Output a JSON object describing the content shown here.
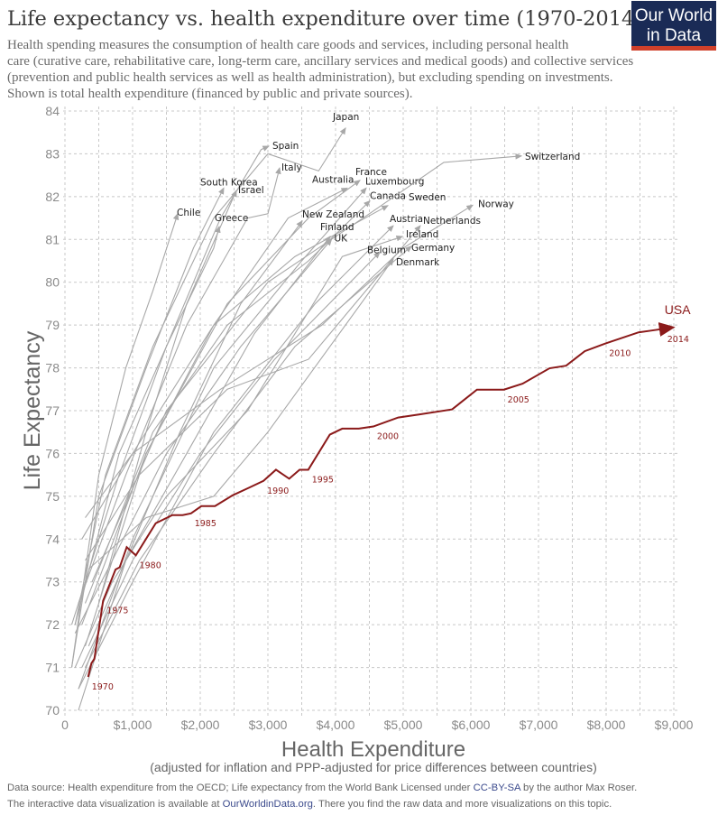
{
  "title": "Life expectancy vs. health expenditure over time (1970-2014)",
  "subtitle_lines": [
    "Health spending measures the consumption of health care goods and services, including personal health",
    "care (curative care, rehabilitative care, long-term care, ancillary services and medical goods) and collective services",
    "(prevention and public health services as well as health administration), but excluding spending on investments.",
    "Shown is total health expenditure (financed by public and private sources)."
  ],
  "logo": {
    "line1": "Our World",
    "line2": "in Data",
    "bg": "#1a2b56",
    "accent": "#d0402a"
  },
  "footer": {
    "line1_a": "Data source: Health expenditure from the OECD; Life expectancy from the World Bank    Licensed under ",
    "line1_link": "CC-BY-SA",
    "line1_b": " by the author Max Roser.",
    "line2_a": "The interactive data visualization is available at ",
    "line2_link": "OurWorldinData.org",
    "line2_b": ". There you find the raw data and more visualizations on this topic."
  },
  "chart_data": {
    "type": "line",
    "title": "Life expectancy vs. health expenditure over time (1970-2014)",
    "xlabel": "Health Expenditure",
    "xlabel_sub": "(adjusted for inflation and PPP-adjusted for price differences between countries)",
    "ylabel": "Life Expectancy",
    "xlim": [
      0,
      9000
    ],
    "ylim": [
      70,
      84
    ],
    "xticks": [
      0,
      1000,
      2000,
      3000,
      4000,
      5000,
      6000,
      7000,
      8000,
      9000
    ],
    "xtick_labels": [
      "0",
      "$1,000",
      "$2,000",
      "$3,000",
      "$4,000",
      "$5,000",
      "$6,000",
      "$7,000",
      "$8,000",
      "$9,000"
    ],
    "yticks": [
      70,
      71,
      72,
      73,
      74,
      75,
      76,
      77,
      78,
      79,
      80,
      81,
      82,
      83,
      84
    ],
    "grid": true,
    "colors": {
      "highlight": "#8b1a1a",
      "others": "#a8a8a8",
      "grid": "#c8c8c8"
    },
    "highlight": {
      "name": "USA",
      "points": [
        [
          343,
          70.78
        ],
        [
          392,
          71.1
        ],
        [
          435,
          71.2
        ],
        [
          564,
          72.56
        ],
        [
          625,
          72.8
        ],
        [
          748,
          73.29
        ],
        [
          809,
          73.34
        ],
        [
          913,
          73.81
        ],
        [
          1048,
          73.62
        ],
        [
          1342,
          74.37
        ],
        [
          1587,
          74.56
        ],
        [
          1740,
          74.56
        ],
        [
          1863,
          74.6
        ],
        [
          2016,
          74.77
        ],
        [
          2218,
          74.77
        ],
        [
          2475,
          75.02
        ],
        [
          2721,
          75.2
        ],
        [
          2935,
          75.36
        ],
        [
          3119,
          75.62
        ],
        [
          3315,
          75.41
        ],
        [
          3468,
          75.62
        ],
        [
          3597,
          75.62
        ],
        [
          3915,
          76.44
        ],
        [
          4099,
          76.58
        ],
        [
          4344,
          76.58
        ],
        [
          4559,
          76.63
        ],
        [
          4926,
          76.84
        ],
        [
          5233,
          76.91
        ],
        [
          5723,
          77.03
        ],
        [
          6090,
          77.49
        ],
        [
          6489,
          77.49
        ],
        [
          6765,
          77.63
        ],
        [
          7163,
          77.99
        ],
        [
          7408,
          78.05
        ],
        [
          7684,
          78.39
        ],
        [
          7990,
          78.57
        ],
        [
          8480,
          78.83
        ],
        [
          8664,
          78.87
        ],
        [
          8970,
          78.94
        ]
      ],
      "year_labels": [
        {
          "year": "1970",
          "at": [
            343,
            70.78
          ]
        },
        {
          "year": "1975",
          "at": [
            564,
            72.56
          ]
        },
        {
          "year": "1980",
          "at": [
            1048,
            73.62
          ]
        },
        {
          "year": "1985",
          "at": [
            1863,
            74.6
          ]
        },
        {
          "year": "1990",
          "at": [
            2935,
            75.36
          ]
        },
        {
          "year": "1995",
          "at": [
            3597,
            75.62
          ]
        },
        {
          "year": "2000",
          "at": [
            4559,
            76.63
          ]
        },
        {
          "year": "2005",
          "at": [
            6489,
            77.49
          ]
        },
        {
          "year": "2010",
          "at": [
            7990,
            78.57
          ]
        },
        {
          "year": "2014",
          "at": [
            8970,
            78.94
          ]
        }
      ]
    },
    "series": [
      {
        "name": "Japan",
        "points": [
          [
            150,
            72.0
          ],
          [
            600,
            75.5
          ],
          [
            1300,
            78.5
          ],
          [
            2200,
            81.5
          ],
          [
            3000,
            83.0
          ],
          [
            3750,
            82.6
          ],
          [
            4147,
            83.6
          ]
        ]
      },
      {
        "name": "Spain",
        "points": [
          [
            100,
            72
          ],
          [
            800,
            75.5
          ],
          [
            1500,
            78.5
          ],
          [
            2300,
            81.5
          ],
          [
            2900,
            83.1
          ],
          [
            3013,
            83.18
          ]
        ]
      },
      {
        "name": "Italy",
        "points": [
          [
            200,
            72.5
          ],
          [
            900,
            75.5
          ],
          [
            1800,
            79
          ],
          [
            2700,
            81.5
          ],
          [
            3000,
            81.6
          ],
          [
            3173,
            82.67
          ]
        ]
      },
      {
        "name": "South Korea",
        "points": [
          [
            100,
            71
          ],
          [
            500,
            75
          ],
          [
            1200,
            78
          ],
          [
            1900,
            80.8
          ],
          [
            2347,
            82.2
          ]
        ]
      },
      {
        "name": "Israel",
        "points": [
          [
            500,
            72.5
          ],
          [
            1200,
            76.5
          ],
          [
            1800,
            79.5
          ],
          [
            2533,
            82.14
          ]
        ]
      },
      {
        "name": "Chile",
        "points": [
          [
            100,
            71
          ],
          [
            500,
            75.5
          ],
          [
            900,
            78
          ],
          [
            1300,
            79.8
          ],
          [
            1667,
            81.6
          ]
        ]
      },
      {
        "name": "Greece",
        "points": [
          [
            150,
            72
          ],
          [
            800,
            76
          ],
          [
            1500,
            78.5
          ],
          [
            2200,
            80.8
          ],
          [
            2280,
            81.3
          ]
        ]
      },
      {
        "name": "Australia",
        "points": [
          [
            300,
            71.5
          ],
          [
            1200,
            76
          ],
          [
            2200,
            79
          ],
          [
            3300,
            81.5
          ],
          [
            4173,
            82.2
          ]
        ]
      },
      {
        "name": "France",
        "points": [
          [
            250,
            72
          ],
          [
            1200,
            76
          ],
          [
            2400,
            79.5
          ],
          [
            3600,
            81.5
          ],
          [
            4360,
            82.38
          ]
        ]
      },
      {
        "name": "Luxembourg",
        "points": [
          [
            200,
            70.5
          ],
          [
            1000,
            74
          ],
          [
            2200,
            78
          ],
          [
            3500,
            80.5
          ],
          [
            4453,
            82.2
          ]
        ]
      },
      {
        "name": "Canada",
        "points": [
          [
            300,
            72.5
          ],
          [
            1300,
            76.5
          ],
          [
            2400,
            79
          ],
          [
            3600,
            80.5
          ],
          [
            4507,
            81.9
          ]
        ]
      },
      {
        "name": "Sweden",
        "points": [
          [
            300,
            74.5
          ],
          [
            1000,
            76
          ],
          [
            2200,
            79
          ],
          [
            3400,
            80.6
          ],
          [
            4773,
            81.79
          ]
        ]
      },
      {
        "name": "Switzerland",
        "points": [
          [
            400,
            73
          ],
          [
            1500,
            77
          ],
          [
            3000,
            80
          ],
          [
            4500,
            81.6
          ],
          [
            5600,
            82.8
          ],
          [
            6747,
            82.95
          ]
        ]
      },
      {
        "name": "Norway",
        "points": [
          [
            250,
            74
          ],
          [
            1000,
            76
          ],
          [
            2300,
            77.5
          ],
          [
            3800,
            79
          ],
          [
            5000,
            80.8
          ],
          [
            6027,
            81.8
          ]
        ]
      },
      {
        "name": "New Zealand",
        "points": [
          [
            350,
            71.5
          ],
          [
            900,
            73.5
          ],
          [
            1700,
            76.5
          ],
          [
            2600,
            79.5
          ],
          [
            3507,
            81.43
          ]
        ]
      },
      {
        "name": "Finland",
        "points": [
          [
            200,
            70
          ],
          [
            900,
            73.5
          ],
          [
            1800,
            76
          ],
          [
            2800,
            78.8
          ],
          [
            3920,
            81.07
          ]
        ]
      },
      {
        "name": "UK",
        "points": [
          [
            150,
            71.8
          ],
          [
            700,
            73.5
          ],
          [
            1500,
            76
          ],
          [
            2600,
            78.5
          ],
          [
            3940,
            81.0
          ]
        ]
      },
      {
        "name": "Austria",
        "points": [
          [
            200,
            70.5
          ],
          [
            1000,
            73
          ],
          [
            2200,
            76.5
          ],
          [
            3700,
            79.5
          ],
          [
            4853,
            81.32
          ]
        ]
      },
      {
        "name": "Netherlands",
        "points": [
          [
            300,
            73.5
          ],
          [
            1100,
            75.5
          ],
          [
            2400,
            77.5
          ],
          [
            3600,
            78.2
          ],
          [
            5253,
            81.32
          ]
        ]
      },
      {
        "name": "Ireland",
        "points": [
          [
            150,
            71
          ],
          [
            700,
            73
          ],
          [
            1500,
            75
          ],
          [
            2700,
            77
          ],
          [
            4100,
            80.6
          ],
          [
            4987,
            81.07
          ]
        ]
      },
      {
        "name": "Germany",
        "points": [
          [
            300,
            71
          ],
          [
            1100,
            73.5
          ],
          [
            2200,
            76
          ],
          [
            3400,
            78.5
          ],
          [
            5120,
            80.84
          ]
        ]
      },
      {
        "name": "Belgium",
        "points": [
          [
            250,
            71
          ],
          [
            1000,
            73.5
          ],
          [
            2000,
            76
          ],
          [
            3100,
            78.2
          ],
          [
            4653,
            80.7
          ]
        ]
      },
      {
        "name": "Denmark",
        "points": [
          [
            350,
            73.3
          ],
          [
            1200,
            74.5
          ],
          [
            2200,
            75
          ],
          [
            3000,
            76.5
          ],
          [
            4853,
            80.54
          ]
        ]
      }
    ]
  }
}
